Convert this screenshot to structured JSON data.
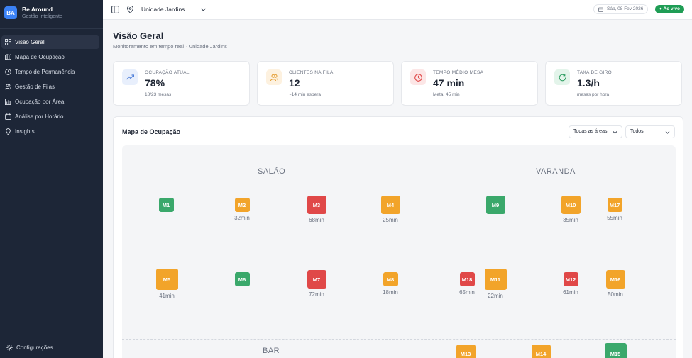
{
  "brand": {
    "logo_text": "BA",
    "name": "Be Around",
    "subtitle": "Gestão Inteligente",
    "accent": "#3b82f6"
  },
  "sidebar": {
    "items": [
      {
        "label": "Visão Geral",
        "icon": "grid-icon",
        "active": true
      },
      {
        "label": "Mapa de Ocupação",
        "icon": "map-icon"
      },
      {
        "label": "Tempo de Permanência",
        "icon": "clock-icon"
      },
      {
        "label": "Gestão de Filas",
        "icon": "users-icon"
      },
      {
        "label": "Ocupação por Área",
        "icon": "bar-chart-icon"
      },
      {
        "label": "Análise por Horário",
        "icon": "calendar-icon"
      },
      {
        "label": "Insights",
        "icon": "lightbulb-icon"
      }
    ],
    "settings_label": "Configurações"
  },
  "topbar": {
    "unit": "Unidade Jardins",
    "date": "Sáb, 08 Fev 2026",
    "live": "Ao vivo"
  },
  "page": {
    "title": "Visão Geral",
    "subtitle": "Monitoramento em tempo real · Unidade Jardins"
  },
  "kpis": [
    {
      "label": "OCUPAÇÃO ATUAL",
      "value": "78%",
      "note": "18/23 mesas",
      "icon": "trending-up-icon",
      "color": "#4f7fd9",
      "bg": "#e8effc"
    },
    {
      "label": "CLIENTES NA FILA",
      "value": "12",
      "note": "~14 min espera",
      "icon": "users-icon",
      "color": "#e39a2b",
      "bg": "#fdf1df"
    },
    {
      "label": "TEMPO MÉDIO MESA",
      "value": "47 min",
      "note": "Meta: 45 min",
      "icon": "clock-icon",
      "color": "#e04848",
      "bg": "#fce6e6"
    },
    {
      "label": "TAXA DE GIRO",
      "value": "1.3/h",
      "note": "mesas por hora",
      "icon": "refresh-icon",
      "color": "#2f9e62",
      "bg": "#e3f4ea"
    }
  ],
  "map": {
    "title": "Mapa de Ocupação",
    "area_filter": "Todas as áreas",
    "status_filter": "Todos",
    "areas": {
      "salao": "SALÃO",
      "varanda": "VARANDA",
      "bar": "BAR"
    },
    "tables": [
      {
        "id": "M1",
        "status": "green",
        "time": ""
      },
      {
        "id": "M2",
        "status": "orange",
        "time": "32min"
      },
      {
        "id": "M3",
        "status": "red",
        "time": "68min"
      },
      {
        "id": "M4",
        "status": "orange",
        "time": "25min"
      },
      {
        "id": "M5",
        "status": "orange",
        "time": "41min"
      },
      {
        "id": "M6",
        "status": "green",
        "time": ""
      },
      {
        "id": "M7",
        "status": "red",
        "time": "72min"
      },
      {
        "id": "M8",
        "status": "orange",
        "time": "18min"
      },
      {
        "id": "M9",
        "status": "green",
        "time": ""
      },
      {
        "id": "M10",
        "status": "orange",
        "time": "35min"
      },
      {
        "id": "M17",
        "status": "orange",
        "time": "55min"
      },
      {
        "id": "M18",
        "status": "red",
        "time": "65min"
      },
      {
        "id": "M11",
        "status": "orange",
        "time": "22min"
      },
      {
        "id": "M12",
        "status": "red",
        "time": "61min"
      },
      {
        "id": "M16",
        "status": "orange",
        "time": "50min"
      },
      {
        "id": "M13",
        "status": "orange",
        "time": ""
      },
      {
        "id": "M14",
        "status": "orange",
        "time": ""
      },
      {
        "id": "M15",
        "status": "green",
        "time": ""
      }
    ]
  }
}
